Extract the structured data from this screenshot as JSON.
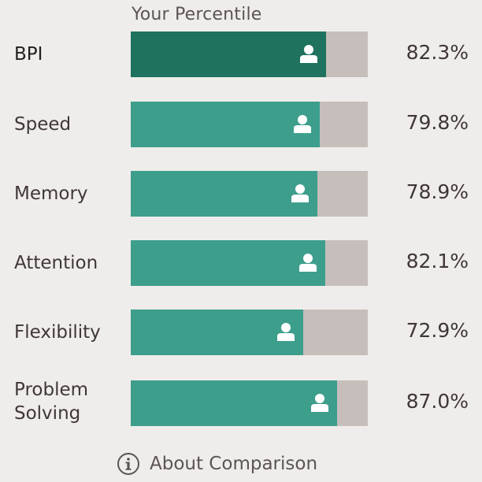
{
  "header": {
    "title": "Your Percentile"
  },
  "rows": [
    {
      "label": "BPI",
      "value": "82.3%",
      "percent": 82.3,
      "icon": "person-icon",
      "color": "#1e725e"
    },
    {
      "label": "Speed",
      "value": "79.8%",
      "percent": 79.8,
      "icon": "person-icon",
      "color": "#3d9e8c"
    },
    {
      "label": "Memory",
      "value": "78.9%",
      "percent": 78.9,
      "icon": "person-icon",
      "color": "#3d9e8c"
    },
    {
      "label": "Attention",
      "value": "82.1%",
      "percent": 82.1,
      "icon": "person-icon",
      "color": "#3d9e8c"
    },
    {
      "label": "Flexibility",
      "value": "72.9%",
      "percent": 72.9,
      "icon": "person-icon",
      "color": "#3d9e8c"
    },
    {
      "label_line1": "Problem",
      "label_line2": "Solving",
      "value": "87.0%",
      "percent": 87.0,
      "icon": "person-icon",
      "color": "#3d9e8c"
    }
  ],
  "footer": {
    "label": "About Comparison",
    "icon": "info-icon"
  },
  "colors": {
    "track": "#c6bebb",
    "background": "#efedeb"
  }
}
